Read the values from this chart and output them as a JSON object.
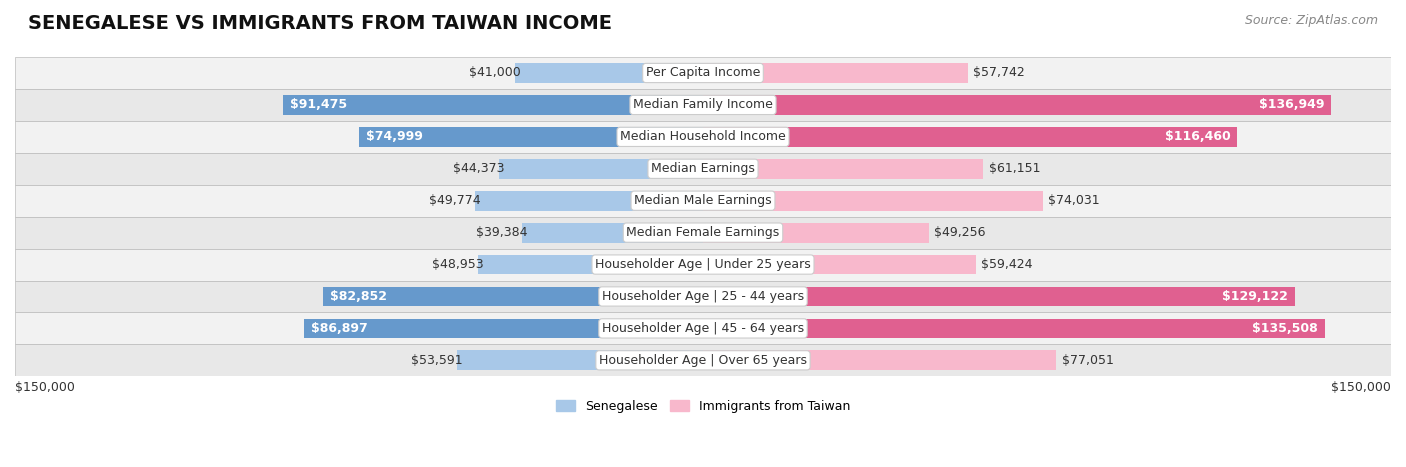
{
  "title": "SENEGALESE VS IMMIGRANTS FROM TAIWAN INCOME",
  "source": "Source: ZipAtlas.com",
  "categories": [
    "Per Capita Income",
    "Median Family Income",
    "Median Household Income",
    "Median Earnings",
    "Median Male Earnings",
    "Median Female Earnings",
    "Householder Age | Under 25 years",
    "Householder Age | 25 - 44 years",
    "Householder Age | 45 - 64 years",
    "Householder Age | Over 65 years"
  ],
  "senegalese_values": [
    41000,
    91475,
    74999,
    44373,
    49774,
    39384,
    48953,
    82852,
    86897,
    53591
  ],
  "taiwan_values": [
    57742,
    136949,
    116460,
    61151,
    74031,
    49256,
    59424,
    129122,
    135508,
    77051
  ],
  "senegalese_labels": [
    "$41,000",
    "$91,475",
    "$74,999",
    "$44,373",
    "$49,774",
    "$39,384",
    "$48,953",
    "$82,852",
    "$86,897",
    "$53,591"
  ],
  "taiwan_labels": [
    "$57,742",
    "$136,949",
    "$116,460",
    "$61,151",
    "$74,031",
    "$49,256",
    "$59,424",
    "$129,122",
    "$135,508",
    "$77,051"
  ],
  "senegalese_color_light": "#a8c8e8",
  "senegalese_color_dark": "#6699cc",
  "taiwan_color_light": "#f8b8cc",
  "taiwan_color_dark": "#e06090",
  "max_value": 150000,
  "bar_height": 0.62,
  "row_bg_even": "#f2f2f2",
  "row_bg_odd": "#e8e8e8",
  "xlabel_left": "$150,000",
  "xlabel_right": "$150,000",
  "legend_senegalese": "Senegalese",
  "legend_taiwan": "Immigrants from Taiwan",
  "title_fontsize": 14,
  "source_fontsize": 9,
  "value_fontsize": 9,
  "category_fontsize": 9,
  "axis_fontsize": 9,
  "inside_label_threshold": 0.55,
  "senegalese_inside": [
    false,
    true,
    true,
    false,
    false,
    false,
    false,
    true,
    true,
    false
  ],
  "taiwan_inside": [
    false,
    true,
    true,
    false,
    false,
    false,
    false,
    true,
    true,
    false
  ]
}
